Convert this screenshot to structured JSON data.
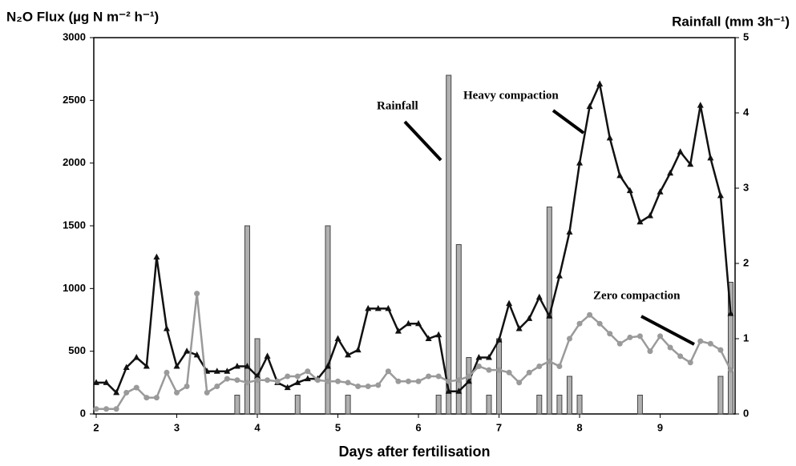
{
  "chart_data": {
    "type": "line",
    "ylabel": "N₂O Flux (µg N m⁻² h⁻¹)",
    "y2label": "Rainfall (mm 3h⁻¹)",
    "xlabel": "Days after fertilisation",
    "annotations": [
      "Rainfall",
      "Heavy compaction",
      "Zero compaction"
    ],
    "xlim": [
      1.97,
      9.93
    ],
    "xticks": [
      2,
      3,
      4,
      5,
      6,
      7,
      8,
      9
    ],
    "ylim": [
      0,
      3000
    ],
    "yticks": [
      0,
      500,
      1000,
      1500,
      2000,
      2500,
      3000
    ],
    "y2lim": [
      0,
      5
    ],
    "y2ticks": [
      0,
      1,
      2,
      3,
      4,
      5
    ],
    "x": [
      2,
      2.125,
      2.25,
      2.375,
      2.5,
      2.625,
      2.75,
      2.875,
      3,
      3.125,
      3.25,
      3.375,
      3.5,
      3.625,
      3.75,
      3.875,
      4,
      4.125,
      4.25,
      4.375,
      4.5,
      4.625,
      4.75,
      4.875,
      5,
      5.125,
      5.25,
      5.375,
      5.5,
      5.625,
      5.75,
      5.875,
      6,
      6.125,
      6.25,
      6.375,
      6.5,
      6.625,
      6.75,
      6.875,
      7,
      7.125,
      7.25,
      7.375,
      7.5,
      7.625,
      7.75,
      7.875,
      8,
      8.125,
      8.25,
      8.375,
      8.5,
      8.625,
      8.75,
      8.875,
      9,
      9.125,
      9.25,
      9.375,
      9.5,
      9.625,
      9.75,
      9.875
    ],
    "series": [
      {
        "name": "Heavy compaction",
        "color": "#111111",
        "marker": "triangle",
        "values": [
          250,
          250,
          170,
          370,
          450,
          380,
          1250,
          680,
          380,
          500,
          470,
          340,
          340,
          340,
          380,
          380,
          300,
          460,
          250,
          210,
          250,
          280,
          280,
          380,
          600,
          470,
          510,
          840,
          840,
          840,
          660,
          720,
          720,
          600,
          630,
          180,
          180,
          260,
          450,
          450,
          590,
          880,
          680,
          760,
          930,
          780,
          1100,
          1450,
          2000,
          2450,
          2630,
          2200,
          1900,
          1780,
          1530,
          1580,
          1770,
          1920,
          2090,
          1990,
          2460,
          2040,
          1740,
          800
        ]
      },
      {
        "name": "Zero compaction",
        "color": "#9a9a9a",
        "marker": "circle",
        "values": [
          40,
          40,
          40,
          170,
          210,
          130,
          130,
          330,
          170,
          220,
          960,
          170,
          220,
          280,
          270,
          250,
          270,
          270,
          260,
          300,
          300,
          340,
          270,
          260,
          260,
          250,
          220,
          220,
          230,
          340,
          260,
          260,
          260,
          300,
          300,
          260,
          270,
          300,
          380,
          350,
          350,
          330,
          250,
          330,
          380,
          420,
          380,
          600,
          720,
          790,
          720,
          640,
          560,
          610,
          620,
          500,
          620,
          530,
          460,
          410,
          580,
          560,
          510,
          350
        ]
      },
      {
        "name": "Rainfall",
        "type": "bar",
        "axis": "y2",
        "color": "#b0b0b0",
        "x": [
          3.75,
          3.875,
          4,
          4.5,
          4.875,
          5.125,
          6.25,
          6.375,
          6.5,
          6.625,
          6.875,
          7,
          7.5,
          7.625,
          7.75,
          7.875,
          8,
          8.75,
          9.75,
          9.875
        ],
        "values": [
          0.25,
          2.5,
          1,
          0.25,
          2.5,
          0.25,
          0.25,
          4.5,
          2.25,
          0.75,
          0.25,
          1,
          0.25,
          2.75,
          0.25,
          0.5,
          0.25,
          0.25,
          0.5,
          1.75
        ]
      }
    ]
  }
}
